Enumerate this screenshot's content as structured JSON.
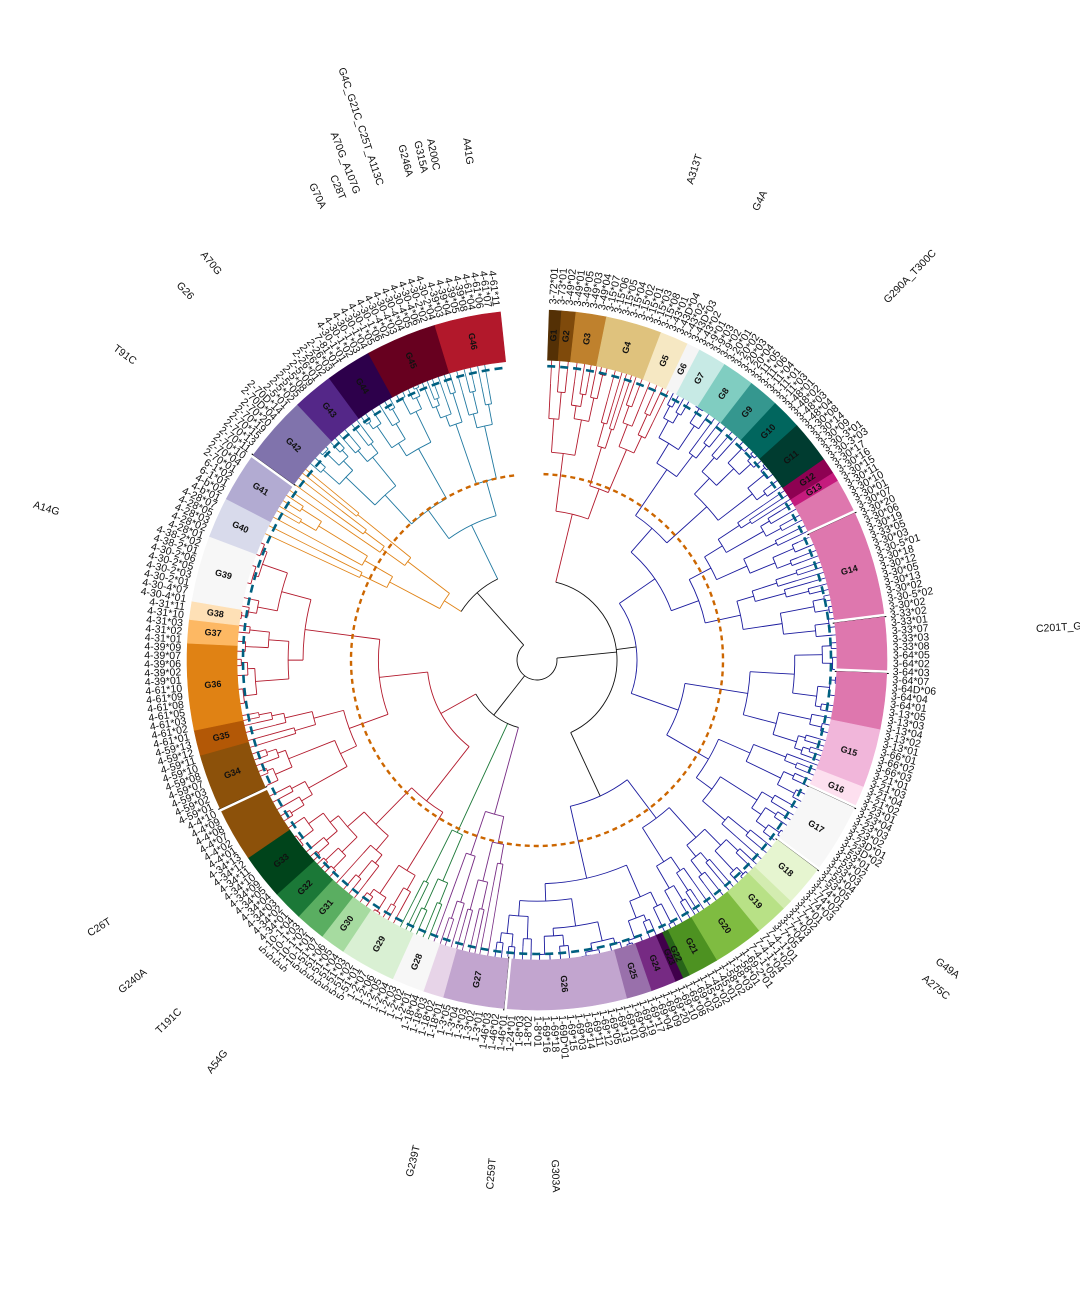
{
  "groups": [
    {
      "label": "G1",
      "span": 1.2,
      "color": "#543005"
    },
    {
      "label": "G2",
      "span": 1.4,
      "color": "#7f4a0b"
    },
    {
      "label": "G3",
      "span": 3.0,
      "color": "#bf812d"
    },
    {
      "label": "G4",
      "span": 5.5,
      "color": "#dfc27d"
    },
    {
      "label": "G5",
      "span": 2.8,
      "color": "#f6e8c3"
    },
    {
      "label": "G6",
      "span": 1.3,
      "color": "#f5f5f5"
    },
    {
      "label": "G7",
      "span": 2.8,
      "color": "#c7eae5"
    },
    {
      "label": "G8",
      "span": 3.2,
      "color": "#80cdc1"
    },
    {
      "label": "G9",
      "span": 3.0,
      "color": "#35978f"
    },
    {
      "label": "G10",
      "span": 3.0,
      "color": "#01665e"
    },
    {
      "label": "G11",
      "span": 4.2,
      "color": "#003c30"
    },
    {
      "label": "G12",
      "span": 1.6,
      "color": "#8e0152"
    },
    {
      "label": "G13",
      "span": 0.9,
      "color": "#c51b7d"
    },
    {
      "label": "",
      "span": 3.5,
      "color": "#de77ae",
      "brk": true
    },
    {
      "label": "G14",
      "span": 10.5,
      "color": "#de77ae",
      "brk": true
    },
    {
      "label": "",
      "span": 5.5,
      "color": "#de77ae",
      "brk": true
    },
    {
      "label": "",
      "span": 5.5,
      "color": "#de77ae"
    },
    {
      "label": "G15",
      "span": 5.8,
      "color": "#f1b6da"
    },
    {
      "label": "G16",
      "span": 2.2,
      "color": "#fde0ef",
      "brk": true
    },
    {
      "label": "G17",
      "span": 7.0,
      "color": "#f7f7f7",
      "brk": true
    },
    {
      "label": "G18",
      "span": 4.0,
      "color": "#e6f5d0"
    },
    {
      "label": "",
      "span": 1.0,
      "color": "#d3ecb0"
    },
    {
      "label": "G19",
      "span": 3.2,
      "color": "#b8e186"
    },
    {
      "label": "G20",
      "span": 5.0,
      "color": "#7fbc41"
    },
    {
      "label": "G21",
      "span": 3.0,
      "color": "#4d9221"
    },
    {
      "label": "G22",
      "span": 0.7,
      "color": "#276419"
    },
    {
      "label": "G23",
      "span": 0.8,
      "color": "#40004b"
    },
    {
      "label": "G24",
      "span": 2.5,
      "color": "#762a83"
    },
    {
      "label": "G25",
      "span": 2.5,
      "color": "#9970ab"
    },
    {
      "label": "G26",
      "span": 12.0,
      "color": "#c2a5cf",
      "brk": true
    },
    {
      "label": "G27",
      "span": 6.0,
      "color": "#c2a5cf"
    },
    {
      "label": "",
      "span": 2.0,
      "color": "#e7d4e8"
    },
    {
      "label": "G28",
      "span": 3.2,
      "color": "#f7f7f7"
    },
    {
      "label": "G29",
      "span": 5.5,
      "color": "#d9f0d3"
    },
    {
      "label": "G30",
      "span": 2.5,
      "color": "#a6dba0"
    },
    {
      "label": "G31",
      "span": 3.0,
      "color": "#5aae61"
    },
    {
      "label": "G32",
      "span": 3.0,
      "color": "#1b7837"
    },
    {
      "label": "G33",
      "span": 4.5,
      "color": "#00441b"
    },
    {
      "label": "",
      "span": 5.5,
      "color": "#8c510a",
      "brk": true
    },
    {
      "label": "G34",
      "span": 5.5,
      "color": "#8c510a"
    },
    {
      "label": "G35",
      "span": 2.5,
      "color": "#b35806"
    },
    {
      "label": "G36",
      "span": 8.5,
      "color": "#e08214"
    },
    {
      "label": "G37",
      "span": 2.3,
      "color": "#fdb863"
    },
    {
      "label": "G38",
      "span": 1.8,
      "color": "#fee0b6"
    },
    {
      "label": "G39",
      "span": 6.5,
      "color": "#f7f7f7"
    },
    {
      "label": "G40",
      "span": 4.0,
      "color": "#d8daeb"
    },
    {
      "label": "G41",
      "span": 5.0,
      "color": "#b2abd2",
      "brk": true
    },
    {
      "label": "G42",
      "span": 6.5,
      "color": "#8073ac"
    },
    {
      "label": "G43",
      "span": 4.0,
      "color": "#542788"
    },
    {
      "label": "G44",
      "span": 4.5,
      "color": "#2d004b"
    },
    {
      "label": "G45",
      "span": 7.0,
      "color": "#67001f"
    },
    {
      "label": "G46",
      "span": 6.5,
      "color": "#b2182b"
    }
  ],
  "tips": [
    "3-72*01",
    "3-73*01",
    "3-49*02",
    "3-49*01",
    "3-49*05",
    "3-49*03",
    "3-49*04",
    "3-15*07",
    "3-15*06",
    "3-15*05",
    "3-15*04",
    "3-15*02",
    "3-15*01",
    "3-15*03",
    "3-15*08",
    "3-43*01",
    "3-43D*04",
    "3-43*02",
    "3-43D*03",
    "3-43*02",
    "3-9*01",
    "3-9*03",
    "3-9*02",
    "3-20*01",
    "3-20*02",
    "3-20*03",
    "3-20*04",
    "3-11*05",
    "3-11*06",
    "3-11*04",
    "3-11*01",
    "3-11*03",
    "3-48*01",
    "3-48*02",
    "3-48*03",
    "3-48*04",
    "3-30*08",
    "3-30*14",
    "3-30*09",
    "3-30-3*01",
    "3-30-3*03",
    "3-30*17",
    "3-30*16",
    "3-30*15",
    "3-30*11",
    "3-30*10",
    "3-30*01",
    "3-30*07",
    "3-30*20",
    "3-30*06",
    "3-30*19",
    "3-33*05",
    "3-30*03",
    "3-30-5*01",
    "3-30*18",
    "3-30*12",
    "3-30*05",
    "3-30*13",
    "3-30*02",
    "3-30-5*02",
    "3-30*02",
    "3-33*02",
    "3-33*01",
    "3-33*07",
    "3-33*03",
    "3-33*08",
    "3-64*05",
    "3-64*02",
    "3-64*03",
    "3-64*07",
    "3-64D*06",
    "3-64*04",
    "3-64*01",
    "3-13*05",
    "3-13*03",
    "3-13*04",
    "3-13*02",
    "3-13*01",
    "3-66*01",
    "3-66*02",
    "3-66*03",
    "3-21*01",
    "3-21*03",
    "3-21*04",
    "3-21*02",
    "3-23*01",
    "3-23*04",
    "3-23*03",
    "3-23*02",
    "3-23D*01",
    "3-23D*02",
    "3-53*01",
    "3-53*02",
    "3-53*03",
    "3-53*04",
    "3-53*05",
    "3-74*01",
    "3-74*02",
    "3-74*03",
    "3-7*01",
    "3-7*02",
    "3-7*03",
    "3-7*04",
    "3-7*05",
    "7-4-1*01",
    "7-4-1*02",
    "7-4-1*04",
    "7-4-1*05",
    "1-69-2*01",
    "1-58*01",
    "1-58*03",
    "1-58*02",
    "1-45*01",
    "1-45*02",
    "1-45*03",
    "1-69*02",
    "1-69*08",
    "1-69*10",
    "1-69*20",
    "1-69*09",
    "1-69*04",
    "1-69*17",
    "1-69*19",
    "1-69*06",
    "1-69*01",
    "1-69*13",
    "1-69*05",
    "1-69*12",
    "1-69*11",
    "1-69*14",
    "1-69*03",
    "1-69*15",
    "1-69D*01",
    "1-69*18",
    "1-69*16",
    "1-8*01",
    "1-8*02",
    "1-8*03",
    "1-24*01",
    "1-46*01",
    "1-46*02",
    "1-46*03",
    "1-3*01",
    "1-3*02",
    "1-3*03",
    "1-3*04",
    "1-3*05",
    "1-18*01",
    "1-18*02",
    "1-18*03",
    "1-18*04",
    "1-2*01",
    "1-2*02",
    "1-2*03",
    "1-2*04",
    "1-2*05",
    "1-2*06",
    "1-2*07",
    "5-51*01",
    "5-51*02",
    "5-51*03",
    "5-51*04",
    "5-51*05",
    "5-51*06",
    "5-51*07",
    "5-10-1*01",
    "5-10-1*02",
    "5-10-1*03",
    "5-10-1*04",
    "4-34*01",
    "4-34*02",
    "4-34*03",
    "4-34*04",
    "4-34*05",
    "4-34*09",
    "4-34*10",
    "4-34*11",
    "4-34*12",
    "4-34*13",
    "4-4*01",
    "4-4*02",
    "4-4*07",
    "4-4*08",
    "4-4*09",
    "4-4*10",
    "4-59*01",
    "4-59*02",
    "4-59*03",
    "4-59*07",
    "4-59*08",
    "4-59*10",
    "4-59*11",
    "4-59*12",
    "4-59*13",
    "4-61*01",
    "4-61*02",
    "4-61*03",
    "4-61*05",
    "4-61*08",
    "4-61*09",
    "4-61*10",
    "4-39*01",
    "4-39*02",
    "4-39*06",
    "4-39*07",
    "4-39*09",
    "4-31*01",
    "4-31*02",
    "4-31*03",
    "4-31*10",
    "4-31*11",
    "4-30-4*01",
    "4-30-4*07",
    "4-30-2*01",
    "4-30-2*03",
    "4-30-2*05",
    "4-30-2*06",
    "4-38-2*01",
    "4-38-2*02",
    "4-28*01",
    "4-28*02",
    "4-28*03",
    "4-28*05",
    "4-28*07",
    "4-b*01",
    "4-b*02",
    "6-1*01",
    "6-1*02",
    "2-70*01",
    "2-70*04",
    "2-70*10",
    "2-70*11",
    "2-70*13",
    "2-70*15",
    "2-70*19",
    "2-70*20",
    "2-70D*04",
    "2-70D*14",
    "2-5*01",
    "2-5*02",
    "2-5*05",
    "2-5*08",
    "2-5*09",
    "2-26*01",
    "2-26*02",
    "2-26*03",
    "7-81*01",
    "4-30-1*01",
    "4-30-1*02",
    "4-30-1*03",
    "4-30-1*04",
    "4-30-1*05",
    "4-30-1*06",
    "4-30-4*02",
    "4-30-4*03",
    "4-30-4*04",
    "4-30-4*05",
    "4-30-4*06",
    "4-30-2*02",
    "4-30-2*04",
    "4-39*03",
    "4-39*04",
    "4-39*05",
    "4-39*08",
    "4-61*04",
    "4-61*06",
    "4-61*07",
    "4-61*11"
  ],
  "mutations": [
    {
      "text": "A313T",
      "pos": 0.045
    },
    {
      "text": "G4A",
      "pos": 0.068
    },
    {
      "text": "G290A_T300C",
      "pos": 0.12
    },
    {
      "text": "C201T_G",
      "pos": 0.24
    },
    {
      "text": "G49A",
      "pos": 0.355
    },
    {
      "text": "A275C",
      "pos": 0.362
    },
    {
      "text": "G303A",
      "pos": 0.5
    },
    {
      "text": "C259T",
      "pos": 0.52
    },
    {
      "text": "G239T",
      "pos": 0.545
    },
    {
      "text": "A54G",
      "pos": 0.615
    },
    {
      "text": "T191C",
      "pos": 0.635
    },
    {
      "text": "G240A",
      "pos": 0.652
    },
    {
      "text": "C26T",
      "pos": 0.672
    },
    {
      "text": "A14G",
      "pos": 0.81
    },
    {
      "text": "T91C",
      "pos": 0.865
    },
    {
      "text": "G26",
      "pos": 0.893
    },
    {
      "text": "A70G",
      "pos": 0.905
    },
    {
      "text": "G70A",
      "pos": 0.945
    },
    {
      "text": "C28T",
      "pos": 0.952
    },
    {
      "text": "A70G_A107G",
      "pos": 0.957
    },
    {
      "text": "G4C_G21C_C25T_A113C",
      "pos": 0.965
    },
    {
      "text": "G246A",
      "pos": 0.975
    },
    {
      "text": "G315A",
      "pos": 0.98
    },
    {
      "text": "A200C",
      "pos": 0.984
    },
    {
      "text": "A41G",
      "pos": 0.995
    }
  ],
  "tree": {
    "clades": [
      {
        "from": 0.0,
        "to": 0.07,
        "color": "#b2182b"
      },
      {
        "from": 0.07,
        "to": 0.37,
        "color": "#1a1a9e"
      },
      {
        "from": 0.37,
        "to": 0.53,
        "color": "#1a1a9e"
      },
      {
        "from": 0.53,
        "to": 0.565,
        "color": "#762a83"
      },
      {
        "from": 0.565,
        "to": 0.585,
        "color": "#1b7837"
      },
      {
        "from": 0.585,
        "to": 0.83,
        "color": "#b2182b"
      },
      {
        "from": 0.83,
        "to": 0.875,
        "color": "#e08214"
      },
      {
        "from": 0.875,
        "to": 0.99,
        "color": "#1f78a0"
      }
    ],
    "inner_circle_color": "#cc6600",
    "outer_circle_color": "#006080"
  }
}
